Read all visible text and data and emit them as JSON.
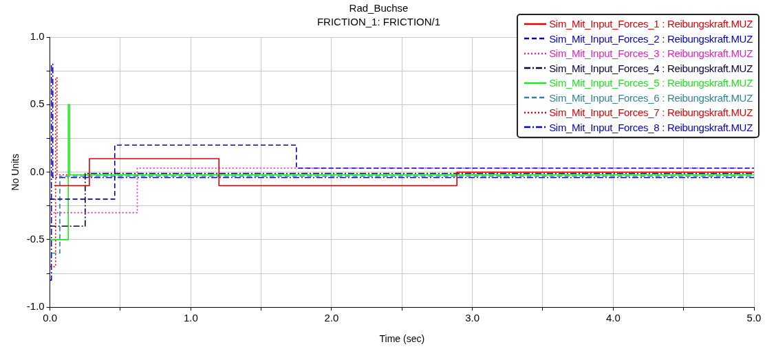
{
  "chart_data": {
    "type": "step",
    "title": "Rad_Buchse",
    "subtitle": "FRICTION_1: FRICTION/1",
    "xlabel": "Time (sec)",
    "ylabel": "No Units",
    "xlim": [
      0,
      5
    ],
    "xticks": [
      {
        "value": 0,
        "label": "0.0"
      },
      {
        "value": 0.5,
        "label": null
      },
      {
        "value": 1,
        "label": "1.0"
      },
      {
        "value": 1.5,
        "label": null
      },
      {
        "value": 2,
        "label": "2.0"
      },
      {
        "value": 2.5,
        "label": null
      },
      {
        "value": 3,
        "label": "3.0"
      },
      {
        "value": 3.5,
        "label": null
      },
      {
        "value": 4,
        "label": "4.0"
      },
      {
        "value": 4.5,
        "label": null
      },
      {
        "value": 5,
        "label": "5.0"
      }
    ],
    "ylim": [
      -1,
      1
    ],
    "yticks": [
      {
        "value": -1,
        "label": "-1.0"
      },
      {
        "value": -0.75,
        "label": null
      },
      {
        "value": -0.5,
        "label": "-0.5"
      },
      {
        "value": -0.25,
        "label": null
      },
      {
        "value": 0,
        "label": "0.0"
      },
      {
        "value": 0.25,
        "label": null
      },
      {
        "value": 0.5,
        "label": "0.5"
      },
      {
        "value": 0.75,
        "label": null
      },
      {
        "value": 1,
        "label": "1.0"
      }
    ],
    "grid": true,
    "legend": "top right",
    "marker": "none",
    "series": [
      {
        "name": "Sim_Mit_Input_Forces_1 : Reibungskraft.MUZ",
        "color": "#e00000",
        "line_style": "solid",
        "x": [
          0.03,
          0.28,
          1.2,
          2.89,
          5
        ],
        "values": [
          -0.1,
          0.1,
          -0.1,
          0,
          0
        ]
      },
      {
        "name": "Sim_Mit_Input_Forces_2 : Reibungskraft.MUZ",
        "color": "#0000c0",
        "line_style": "dashed",
        "x": [
          0,
          0.46,
          1.75,
          5
        ],
        "values": [
          -0.2,
          0.2,
          0.03,
          0.03
        ]
      },
      {
        "name": "Sim_Mit_Input_Forces_3 : Reibungskraft.MUZ",
        "color": "#e020c0",
        "line_style": "dotted",
        "x": [
          0,
          0.62,
          5
        ],
        "values": [
          -0.3,
          0.03,
          0.03
        ]
      },
      {
        "name": "Sim_Mit_Input_Forces_4 : Reibungskraft.MUZ",
        "color": "#000040",
        "line_style": "dashdot",
        "x": [
          0,
          0.25,
          5
        ],
        "values": [
          -0.4,
          -0.01,
          -0.01
        ]
      },
      {
        "name": "Sim_Mit_Input_Forces_5 : Reibungskraft.MUZ",
        "color": "#20e020",
        "line_style": "solid",
        "x": [
          0,
          0.13,
          0.14,
          5
        ],
        "values": [
          -0.5,
          0.5,
          -0.02,
          -0.02
        ]
      },
      {
        "name": "Sim_Mit_Input_Forces_6 : Reibungskraft.MUZ",
        "color": "#3080a0",
        "line_style": "dashed",
        "x": [
          0.01,
          0.07,
          5
        ],
        "values": [
          -0.6,
          -0.03,
          -0.03
        ]
      },
      {
        "name": "Sim_Mit_Input_Forces_7 : Reibungskraft.MUZ",
        "color": "#e00000",
        "line_style": "dotted",
        "x": [
          0,
          0.04,
          0.05,
          5
        ],
        "values": [
          -0.7,
          0.7,
          -0.02,
          -0.02
        ]
      },
      {
        "name": "Sim_Mit_Input_Forces_8 : Reibungskraft.MUZ",
        "color": "#0000c0",
        "line_style": "dashdot",
        "x": [
          0,
          0.01,
          0.02,
          5
        ],
        "values": [
          -0.8,
          0.8,
          -0.04,
          -0.04
        ]
      }
    ]
  }
}
